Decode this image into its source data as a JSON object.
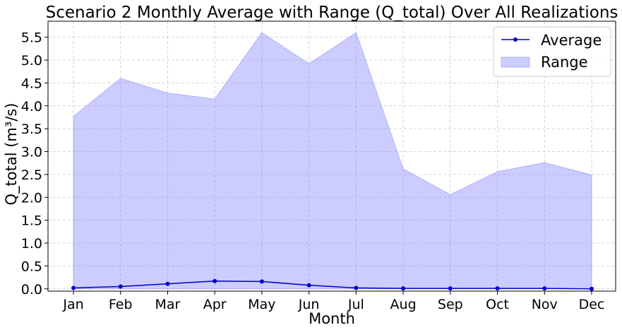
{
  "chart_data": {
    "type": "line",
    "title": "Scenario 2 Monthly Average with Range (Q_total) Over All Realizations",
    "xlabel": "Month",
    "ylabel": "Q_total (m³/s)",
    "categories": [
      "Jan",
      "Feb",
      "Mar",
      "Apr",
      "May",
      "Jun",
      "Jul",
      "Aug",
      "Sep",
      "Oct",
      "Nov",
      "Dec"
    ],
    "yticks": [
      "0.0",
      "0.5",
      "1.0",
      "1.5",
      "2.0",
      "2.5",
      "3.0",
      "3.5",
      "4.0",
      "4.5",
      "5.0",
      "5.5"
    ],
    "ylim": [
      -0.05,
      5.85
    ],
    "grid": true,
    "legend_position": "top-right",
    "series": [
      {
        "name": "Average",
        "kind": "line",
        "color": "#0000cc",
        "values": [
          0.02,
          0.05,
          0.11,
          0.17,
          0.16,
          0.08,
          0.02,
          0.01,
          0.01,
          0.01,
          0.01,
          0.0
        ]
      },
      {
        "name": "Range",
        "kind": "band",
        "color": "#8080ff",
        "lower": [
          0.0,
          0.0,
          0.0,
          0.0,
          0.0,
          0.0,
          0.0,
          0.0,
          0.0,
          0.0,
          0.0,
          0.0
        ],
        "upper": [
          3.77,
          4.6,
          4.28,
          4.15,
          5.6,
          4.92,
          5.6,
          2.62,
          2.06,
          2.56,
          2.76,
          2.49
        ]
      }
    ]
  }
}
